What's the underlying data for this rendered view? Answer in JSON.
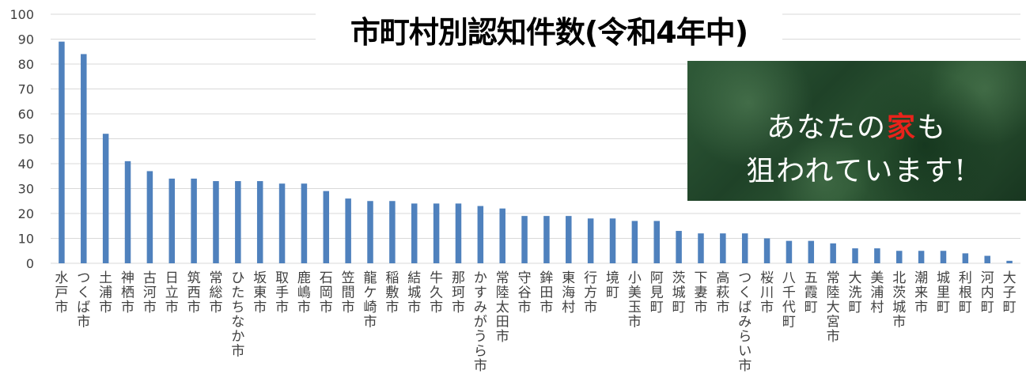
{
  "title": "市町村別認知件数(令和4年中)",
  "banner": {
    "line1_before": "あなたの",
    "line1_accent": "家",
    "line1_after": "も",
    "line2": "狙われています!"
  },
  "colors": {
    "bar": "#4f81bd",
    "grid": "#d9d9d9",
    "accent": "#e8231b",
    "banner_bg": "#234a2c"
  },
  "chart_data": {
    "type": "bar",
    "title": "市町村別認知件数(令和4年中)",
    "xlabel": "",
    "ylabel": "",
    "ylim": [
      0,
      100
    ],
    "yticks": [
      0,
      10,
      20,
      30,
      40,
      50,
      60,
      70,
      80,
      90,
      100
    ],
    "grid": true,
    "categories": [
      "水戸市",
      "つくば市",
      "土浦市",
      "神栖市",
      "古河市",
      "日立市",
      "筑西市",
      "常総市",
      "ひたちなか市",
      "坂東市",
      "取手市",
      "鹿嶋市",
      "石岡市",
      "笠間市",
      "龍ケ崎市",
      "稲敷市",
      "結城市",
      "牛久市",
      "那珂市",
      "かすみがうら市",
      "常陸太田市",
      "守谷市",
      "鉾田市",
      "東海村",
      "行方市",
      "境町",
      "小美玉市",
      "阿見町",
      "茨城町",
      "下妻市",
      "高萩市",
      "つくばみらい市",
      "桜川市",
      "八千代町",
      "五霞町",
      "常陸大宮市",
      "大洗町",
      "美浦村",
      "北茨城市",
      "潮来市",
      "城里町",
      "利根町",
      "河内町",
      "大子町"
    ],
    "values": [
      89,
      84,
      52,
      41,
      37,
      34,
      34,
      33,
      33,
      33,
      32,
      32,
      29,
      26,
      25,
      25,
      24,
      24,
      24,
      23,
      22,
      19,
      19,
      19,
      18,
      18,
      17,
      17,
      13,
      12,
      12,
      12,
      10,
      9,
      9,
      8,
      6,
      6,
      5,
      5,
      5,
      4,
      3,
      1
    ]
  }
}
